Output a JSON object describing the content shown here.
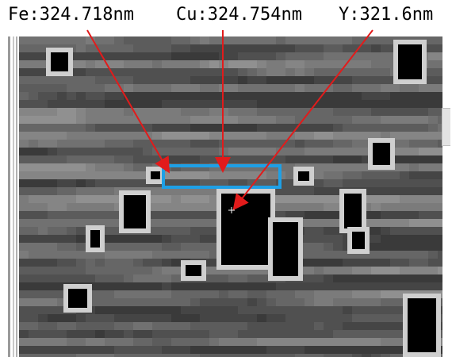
{
  "annotations": {
    "fe_label": "Fe:324.718nm",
    "cu_label": "Cu:324.754nm",
    "y_label": "Y:321.6nm"
  },
  "colors": {
    "arrow": "#e21b1b",
    "highlight_box": "#1ea0e6",
    "background": "#ffffff"
  },
  "icons": {
    "map_cursor": "crosshair-icon",
    "scroll": "scroll-grip-icon"
  }
}
